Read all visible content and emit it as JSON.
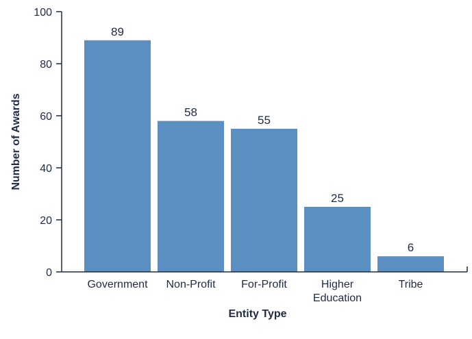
{
  "chart_data": {
    "type": "bar",
    "categories": [
      "Government",
      "Non-Profit",
      "For-Profit",
      "Higher\nEducation",
      "Tribe"
    ],
    "values": [
      89,
      58,
      55,
      25,
      6
    ],
    "data_labels": [
      "89",
      "58",
      "55",
      "25",
      "6"
    ],
    "xlabel": "Entity Type",
    "ylabel": "Number of Awards",
    "ylim": [
      0,
      100
    ],
    "yticks": [
      0,
      20,
      40,
      60,
      80,
      100
    ],
    "grid": false,
    "bar_color": "#5b8fc2"
  }
}
